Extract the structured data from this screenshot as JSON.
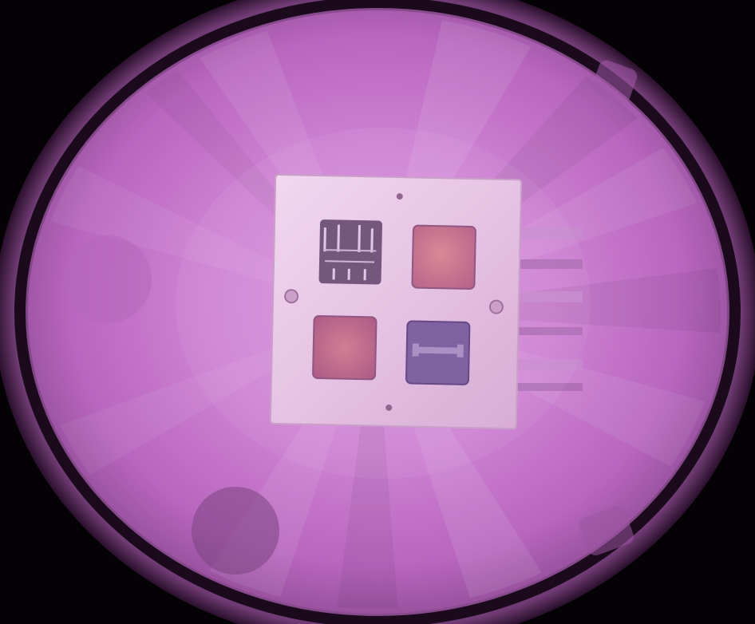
{
  "palette": {
    "background": "#050205",
    "outer_rim": "#7a3f7c",
    "dark_ring": "#1a0a1c",
    "glow_center": "#e6a6e8",
    "glow_mid": "#c776cc",
    "glow_edge": "#8e4a94",
    "plate": "#e8c9e6",
    "plate_shadow": "#c79bc6",
    "sample_dark": "#6a4a72",
    "sample_copper": "#c96a8c",
    "sample_blue": "#7f5fa0",
    "hole": "#8c5f8a"
  }
}
